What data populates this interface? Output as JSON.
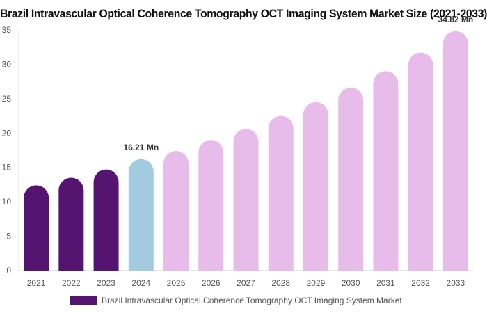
{
  "chart_data": {
    "type": "bar",
    "title": "Brazil Intravascular Optical Coherence Tomography OCT Imaging System Market Size (2021-2033)",
    "categories": [
      "2021",
      "2022",
      "2023",
      "2024",
      "2025",
      "2026",
      "2027",
      "2028",
      "2029",
      "2030",
      "2031",
      "2032",
      "2033"
    ],
    "series": [
      {
        "name": "Brazil Intravascular Optical Coherence Tomography OCT Imaging System Market",
        "values": [
          12.4,
          13.5,
          14.7,
          16.21,
          17.4,
          19.0,
          20.6,
          22.5,
          24.5,
          26.6,
          29.0,
          31.7,
          34.82
        ]
      }
    ],
    "bar_colors": [
      "#541470",
      "#541470",
      "#541470",
      "#a3cbdf",
      "#e7bcea",
      "#e7bcea",
      "#e7bcea",
      "#e7bcea",
      "#e7bcea",
      "#e7bcea",
      "#e7bcea",
      "#e7bcea",
      "#e7bcea"
    ],
    "data_labels": [
      {
        "index": 3,
        "text": "16.21 Mn"
      },
      {
        "index": 12,
        "text": "34.82 Mn"
      }
    ],
    "ylim": [
      0,
      35
    ],
    "yticks": [
      0,
      5,
      10,
      15,
      20,
      25,
      30,
      35
    ],
    "legend_color": "#541470",
    "grid": false,
    "legend_position": "bottom"
  }
}
